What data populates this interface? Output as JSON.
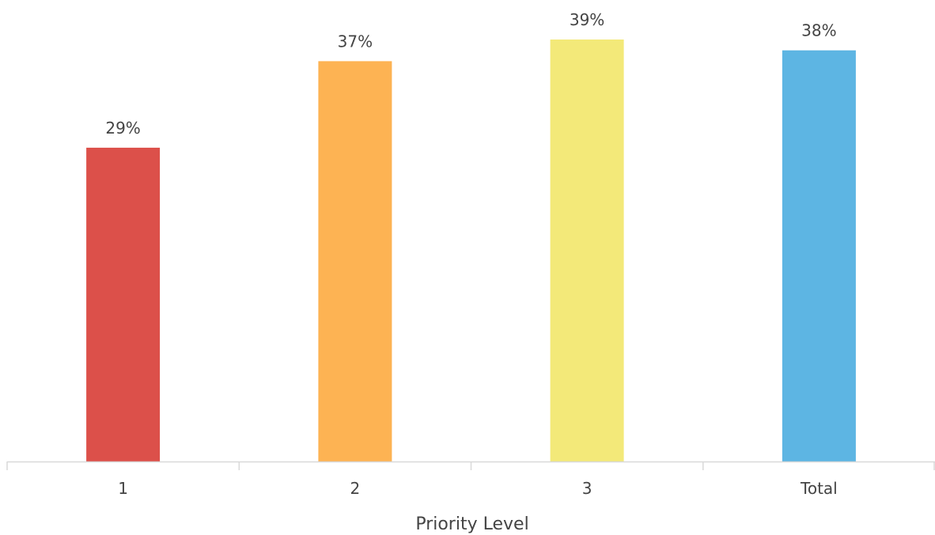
{
  "chart_data": {
    "type": "bar",
    "title": "",
    "xlabel": "Priority Level",
    "ylabel": "",
    "categories": [
      "1",
      "2",
      "3",
      "Total"
    ],
    "values": [
      29,
      37,
      39,
      38
    ],
    "data_labels": [
      "29%",
      "37%",
      "39%",
      "38%"
    ],
    "value_unit": "%",
    "ylim": [
      0,
      39
    ],
    "colors": [
      "#DC504A",
      "#FDB353",
      "#F3E979",
      "#5DB5E3"
    ],
    "grid": false,
    "legend": "none"
  },
  "style": {
    "axis_color": "#D9D9D9",
    "text_color": "#444444"
  }
}
